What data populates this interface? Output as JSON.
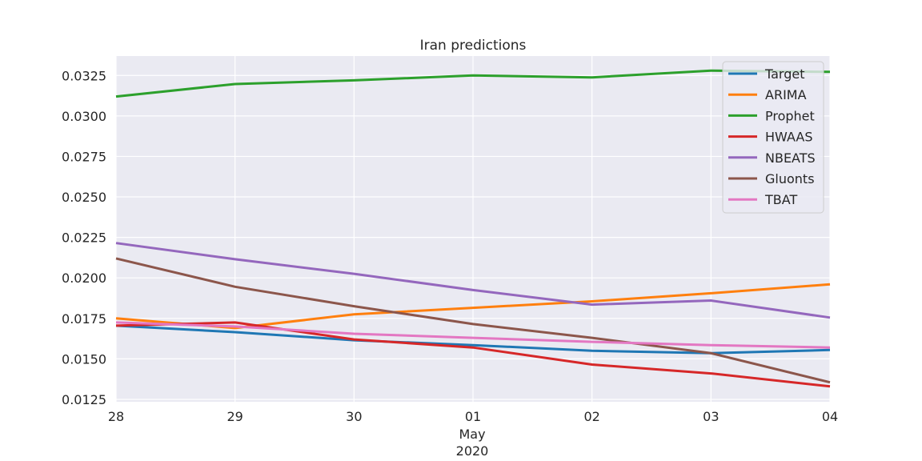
{
  "chart_data": {
    "type": "line",
    "title": "Iran predictions",
    "xlabel": "",
    "ylabel": "",
    "x": [
      "2020-04-28",
      "2020-04-29",
      "2020-04-30",
      "2020-05-01",
      "2020-05-02",
      "2020-05-03",
      "2020-05-04"
    ],
    "x_tick_labels": [
      "28",
      "29",
      "30",
      "01",
      "02",
      "03",
      "04"
    ],
    "x_month_label": "May",
    "x_year_label": "2020",
    "ylim": [
      0.01235,
      0.0337
    ],
    "y_ticks": [
      0.0125,
      0.015,
      0.0175,
      0.02,
      0.0225,
      0.025,
      0.0275,
      0.03,
      0.0325
    ],
    "y_tick_labels": [
      "0.0125",
      "0.0150",
      "0.0175",
      "0.0200",
      "0.0225",
      "0.0250",
      "0.0275",
      "0.0300",
      "0.0325"
    ],
    "grid": true,
    "legend_position": "top-right",
    "series": [
      {
        "name": "Target",
        "color": "#1f77b4",
        "values": [
          0.01705,
          0.01665,
          0.01615,
          0.01585,
          0.0155,
          0.01535,
          0.01555
        ]
      },
      {
        "name": "ARIMA",
        "color": "#ff7f0e",
        "values": [
          0.0175,
          0.0169,
          0.01775,
          0.01815,
          0.01855,
          0.01905,
          0.0196
        ]
      },
      {
        "name": "Prophet",
        "color": "#2ca02c",
        "values": [
          0.0312,
          0.03197,
          0.0322,
          0.0325,
          0.03238,
          0.0328,
          0.03272
        ]
      },
      {
        "name": "HWAAS",
        "color": "#d62728",
        "values": [
          0.01705,
          0.01725,
          0.0162,
          0.0157,
          0.01465,
          0.0141,
          0.0133
        ]
      },
      {
        "name": "NBEATS",
        "color": "#9467bd",
        "values": [
          0.02215,
          0.02115,
          0.02025,
          0.01925,
          0.01835,
          0.0186,
          0.01755
        ]
      },
      {
        "name": "Gluonts",
        "color": "#8c564b",
        "values": [
          0.0212,
          0.01945,
          0.01825,
          0.01715,
          0.0163,
          0.01535,
          0.01355
        ]
      },
      {
        "name": "TBAT",
        "color": "#e377c2",
        "values": [
          0.01725,
          0.017,
          0.01655,
          0.0163,
          0.01605,
          0.01585,
          0.0157
        ]
      }
    ]
  }
}
